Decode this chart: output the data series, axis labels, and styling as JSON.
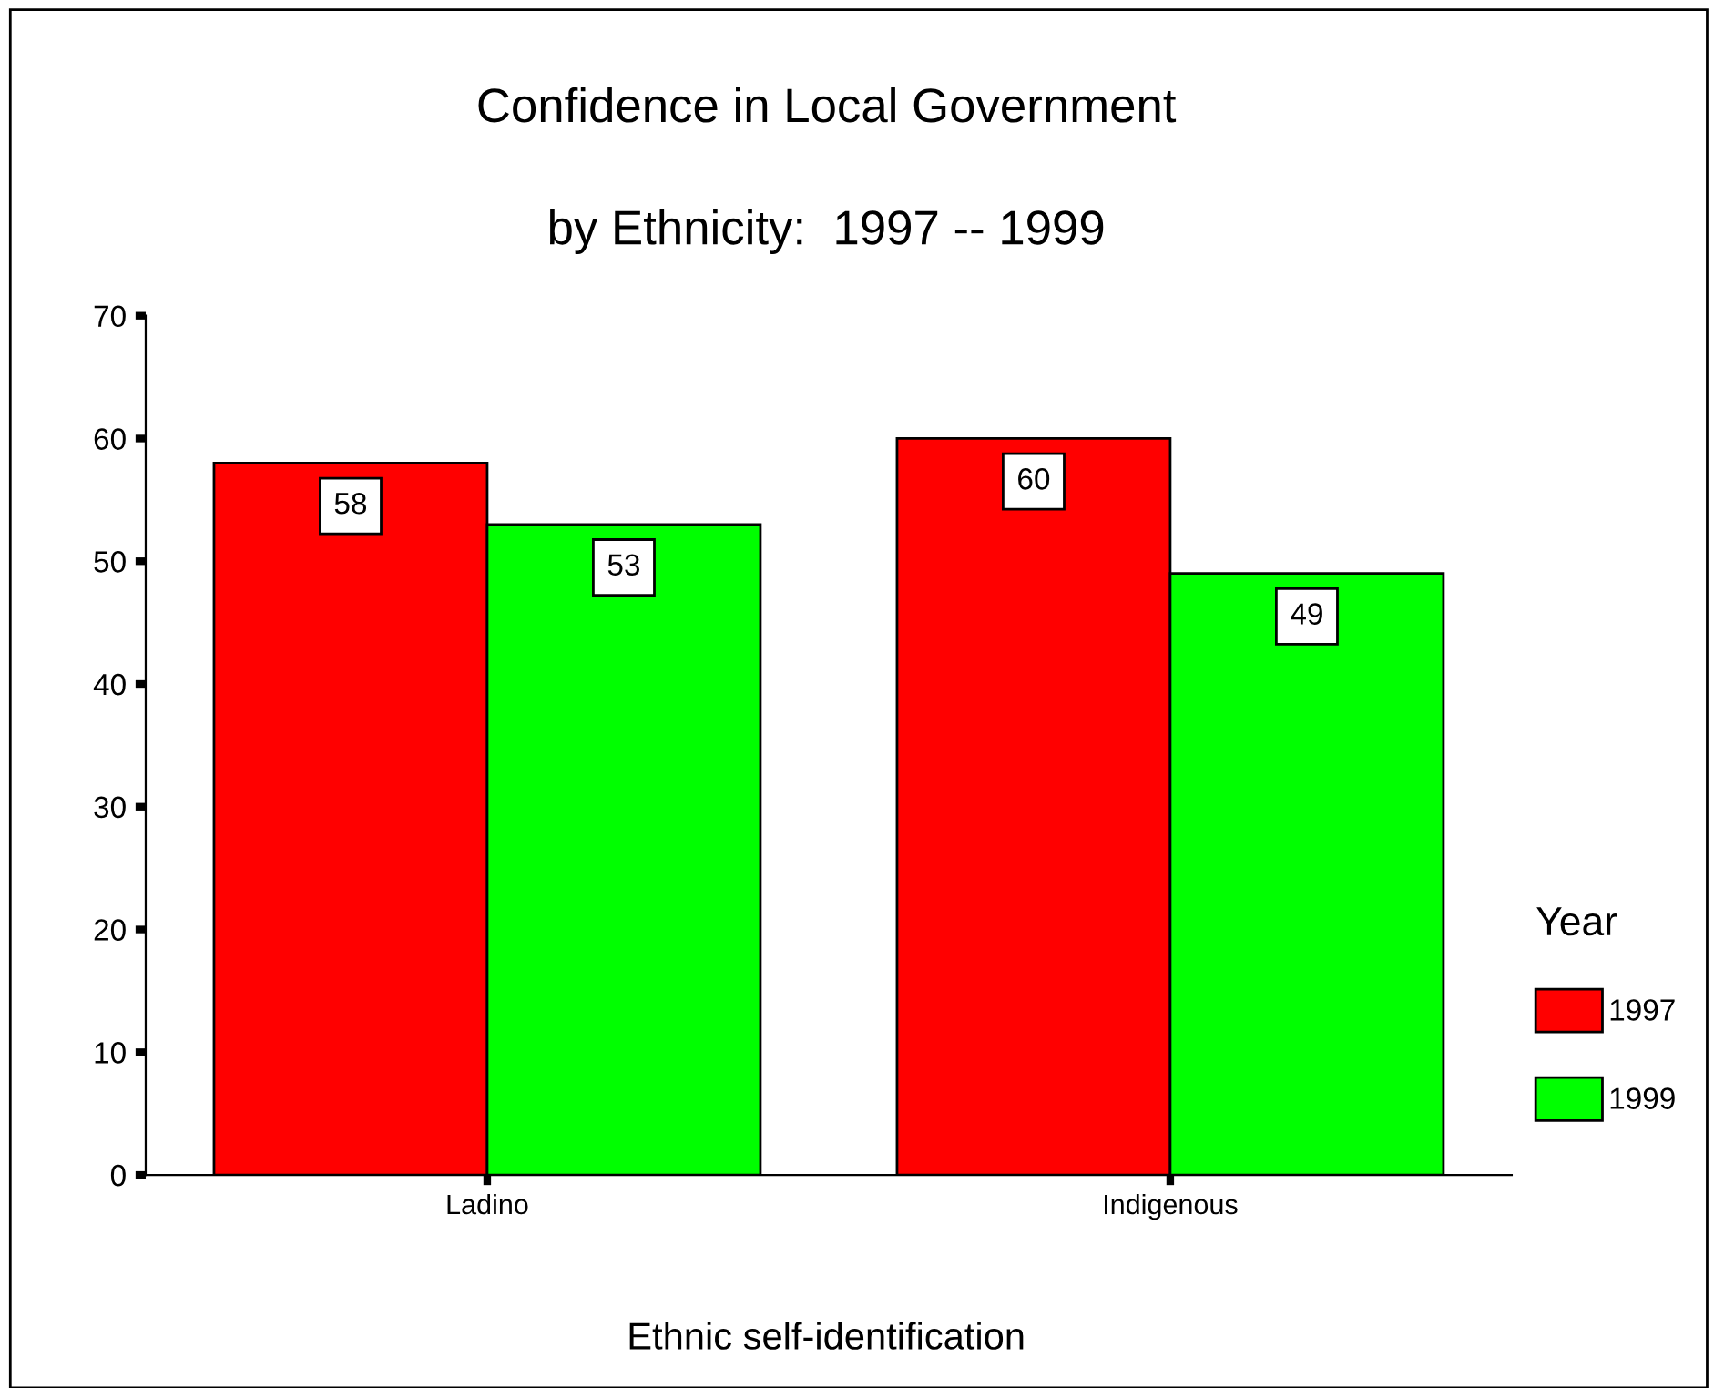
{
  "chart_data": {
    "type": "bar",
    "title": "Confidence in Local Government",
    "subtitle": "by Ethnicity:  1997 -- 1999",
    "xlabel": "Ethnic self-identification",
    "categories": [
      "Ladino",
      "Indigenous"
    ],
    "series": [
      {
        "name": "1997",
        "color": "#ff0000",
        "values": [
          58,
          60
        ]
      },
      {
        "name": "1999",
        "color": "#00ff00",
        "values": [
          53,
          49
        ]
      }
    ],
    "ylim": [
      0,
      70
    ],
    "yticks": [
      0,
      10,
      20,
      30,
      40,
      50,
      60,
      70
    ],
    "legend_title": "Year",
    "legend": "right",
    "grid": false,
    "data_labels": true
  }
}
